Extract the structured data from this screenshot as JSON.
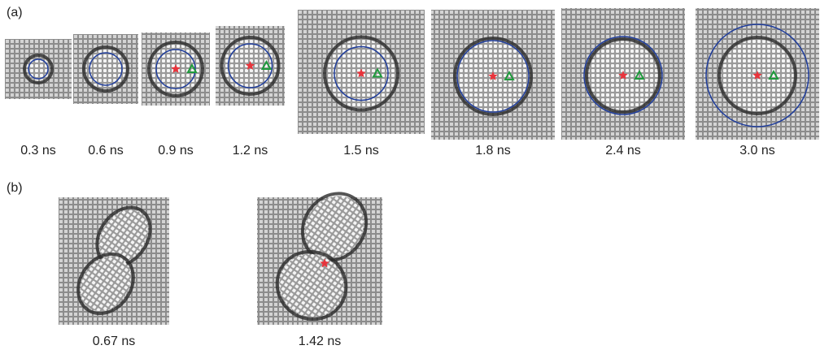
{
  "panel_a": {
    "label": "(a)",
    "frames": [
      {
        "time": "0.3 ns"
      },
      {
        "time": "0.6 ns"
      },
      {
        "time": "0.9 ns"
      },
      {
        "time": "1.2 ns"
      },
      {
        "time": "1.5 ns"
      },
      {
        "time": "1.8 ns"
      },
      {
        "time": "2.4 ns"
      },
      {
        "time": "3.0 ns"
      }
    ]
  },
  "panel_b": {
    "label": "(b)",
    "frames": [
      {
        "time": "0.67 ns"
      },
      {
        "time": "1.42 ns"
      }
    ]
  }
}
